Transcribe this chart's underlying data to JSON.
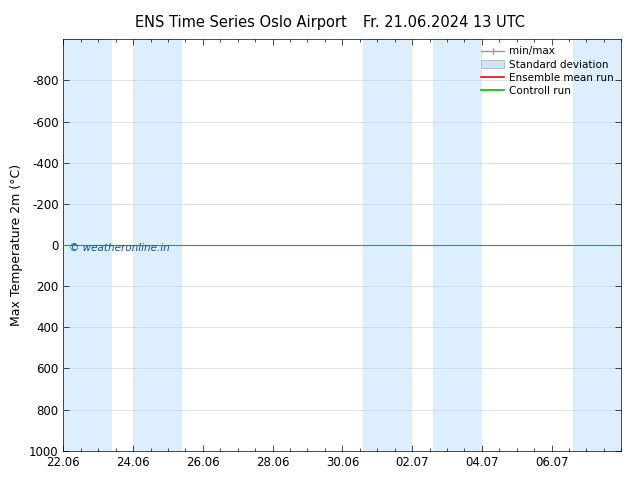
{
  "title_left": "ENS Time Series Oslo Airport",
  "title_right": "Fr. 21.06.2024 13 UTC",
  "ylabel": "Max Temperature 2m (°C)",
  "ylim_bottom": 1000,
  "ylim_top": -1000,
  "yticks": [
    -800,
    -600,
    -400,
    -200,
    0,
    200,
    400,
    600,
    800,
    1000
  ],
  "xtick_labels": [
    "22.06",
    "24.06",
    "26.06",
    "28.06",
    "30.06",
    "02.07",
    "04.07",
    "06.07"
  ],
  "xmin": 0,
  "xmax": 16,
  "shaded_bands": [
    [
      0.0,
      1.4
    ],
    [
      2.0,
      3.4
    ],
    [
      8.6,
      10.0
    ],
    [
      10.6,
      12.0
    ],
    [
      14.6,
      16.0
    ]
  ],
  "band_color": "#ddeeff",
  "control_run_y": 0,
  "control_run_color": "#00bb00",
  "ensemble_mean_color": "#ff0000",
  "background_color": "#ffffff",
  "grid_color": "#cccccc",
  "watermark_text": "© weatheronline.in",
  "watermark_color": "#0055bb",
  "legend_minmax_color": "#999999",
  "legend_std_facecolor": "#cce4f5",
  "legend_std_edgecolor": "#aaaaaa",
  "font_size": 8.5,
  "title_font_size": 10.5,
  "ylabel_font_size": 9
}
